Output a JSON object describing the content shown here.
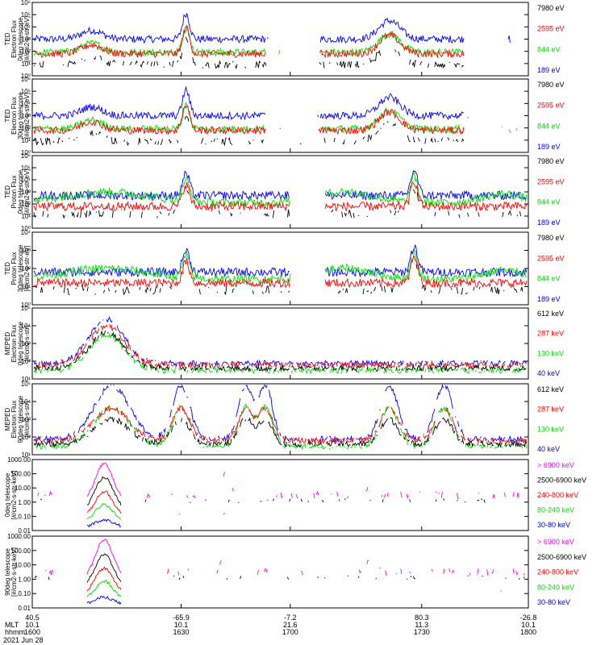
{
  "colors": {
    "black": "#000000",
    "blue": "#0000ff",
    "red": "#ff0000",
    "green": "#00e000",
    "magenta": "#ff00ff"
  },
  "chart_data": [
    {
      "type": "line",
      "ylabel_lines": [
        "TED",
        "Electron Flux",
        "0deg telescope",
        "[#/cm2-s-str-eV]"
      ],
      "yscale": "log",
      "ylim": [
        1,
        1000000
      ],
      "yticks": [
        "10⁰",
        "10¹",
        "10²",
        "10³",
        "10⁴",
        "10⁵",
        "10⁶"
      ],
      "legend": [
        {
          "label": "7980 eV",
          "color": "black"
        },
        {
          "label": "2595 eV",
          "color": "red"
        },
        {
          "label": "844 eV",
          "color": "green"
        },
        {
          "label": "189 eV",
          "color": "blue"
        }
      ]
    },
    {
      "type": "line",
      "ylabel_lines": [
        "TED",
        "Electron Flux",
        "30deg telescope",
        "[#/cm2-s-str-eV]"
      ],
      "yscale": "log",
      "ylim": [
        1,
        1000000
      ],
      "yticks": [
        "10⁰",
        "10¹",
        "10²",
        "10³",
        "10⁴",
        "10⁵",
        "10⁶"
      ],
      "legend": [
        {
          "label": "7980 eV",
          "color": "black"
        },
        {
          "label": "2595 eV",
          "color": "red"
        },
        {
          "label": "844 eV",
          "color": "green"
        },
        {
          "label": "189 eV",
          "color": "blue"
        }
      ]
    },
    {
      "type": "line",
      "ylabel_lines": [
        "TED",
        "Proton Flux",
        "0deg telescope",
        "[#/cm2-s-str-eV]"
      ],
      "yscale": "log",
      "ylim": [
        1,
        1000000
      ],
      "yticks": [
        "10⁰",
        "10¹",
        "10²",
        "10³",
        "10⁴",
        "10⁵",
        "10⁶"
      ],
      "legend": [
        {
          "label": "7980 eV",
          "color": "black"
        },
        {
          "label": "2595 eV",
          "color": "red"
        },
        {
          "label": "844 eV",
          "color": "green"
        },
        {
          "label": "189 eV",
          "color": "blue"
        }
      ]
    },
    {
      "type": "line",
      "ylabel_lines": [
        "TED",
        "Proton Flux",
        "30deg telescope",
        "[#/cm2-s-str-eV]"
      ],
      "yscale": "log",
      "ylim": [
        1,
        10000
      ],
      "yticks": [
        "10⁰",
        "10¹",
        "10²",
        "10³",
        "10⁴"
      ],
      "legend": [
        {
          "label": "7980 eV",
          "color": "black"
        },
        {
          "label": "2595 eV",
          "color": "red"
        },
        {
          "label": "844 eV",
          "color": "green"
        },
        {
          "label": "189 eV",
          "color": "blue"
        }
      ]
    },
    {
      "type": "line",
      "ylabel_lines": [
        "MEPED",
        "Electron Flux",
        "0deg telescope",
        "[#/cm2-s-str]"
      ],
      "yscale": "log",
      "ylim": [
        10,
        100000
      ],
      "yticks": [
        "10¹",
        "10²",
        "10³",
        "10⁴",
        "10⁵"
      ],
      "legend": [
        {
          "label": "612 keV",
          "color": "black"
        },
        {
          "label": "287 keV",
          "color": "red"
        },
        {
          "label": "130 keV",
          "color": "green"
        },
        {
          "label": "40 keV",
          "color": "blue"
        }
      ]
    },
    {
      "type": "line",
      "ylabel_lines": [
        "MEPED",
        "Electron Flux",
        "90deg telescope",
        "[#/cm2-s-str]"
      ],
      "yscale": "log",
      "ylim": [
        10,
        100000
      ],
      "yticks": [
        "10¹",
        "10²",
        "10³",
        "10⁴",
        "10⁵"
      ],
      "legend": [
        {
          "label": "612 keV",
          "color": "black"
        },
        {
          "label": "287 keV",
          "color": "red"
        },
        {
          "label": "130 keV",
          "color": "green"
        },
        {
          "label": "40 keV",
          "color": "blue"
        }
      ]
    },
    {
      "type": "line",
      "ylabel_lines": [
        "0deg telescope",
        "[#/cm2-s-str-keV]"
      ],
      "yscale": "log",
      "ylim": [
        0.01,
        1000
      ],
      "yticks": [
        "0.01",
        "0.10",
        "1.00",
        "10.00",
        "100.00",
        "1000.00"
      ],
      "legend": [
        {
          "label": "> 6900 keV",
          "color": "magenta"
        },
        {
          "label": "2500-6900 keV",
          "color": "black"
        },
        {
          "label": "240-800 keV",
          "color": "red"
        },
        {
          "label": "80-240 keV",
          "color": "green"
        },
        {
          "label": "30-80 keV",
          "color": "blue"
        }
      ]
    },
    {
      "type": "line",
      "ylabel_lines": [
        "90deg telescope",
        "[#/cm2-s-str-keV]"
      ],
      "yscale": "log",
      "ylim": [
        0.01,
        1000
      ],
      "yticks": [
        "0.01",
        "0.10",
        "1.00",
        "10.00",
        "100.00",
        "1000.00"
      ],
      "legend": [
        {
          "label": "> 6900 keV",
          "color": "magenta"
        },
        {
          "label": "2500-6900 keV",
          "color": "black"
        },
        {
          "label": "240-800 keV",
          "color": "red"
        },
        {
          "label": "80-240 keV",
          "color": "green"
        },
        {
          "label": "30-80 keV",
          "color": "blue"
        }
      ]
    }
  ],
  "x_axis": {
    "row_labels": [
      "",
      "MLT",
      "hhmm"
    ],
    "ticks": [
      {
        "values": [
          "40.5",
          "10.1",
          "1600"
        ]
      },
      {
        "values": [
          "-65.9",
          "10.1",
          "1630"
        ]
      },
      {
        "values": [
          "-7.2",
          "21.6",
          "1700"
        ]
      },
      {
        "values": [
          "80.3",
          "11.3",
          "1730"
        ]
      },
      {
        "values": [
          "-26.8",
          "10.1",
          "1800"
        ]
      }
    ],
    "date": "2021 Jun 28"
  }
}
